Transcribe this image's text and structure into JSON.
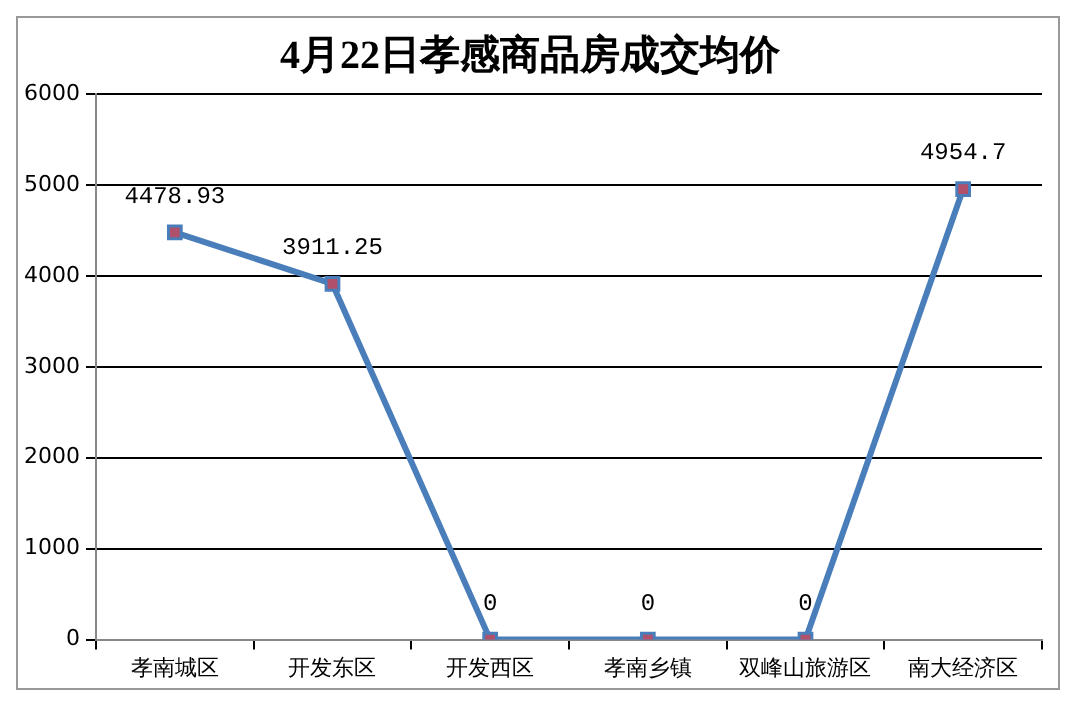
{
  "chart_data": {
    "type": "line",
    "title": "4月22日孝感商品房成交均价",
    "categories": [
      "孝南城区",
      "开发东区",
      "开发西区",
      "孝南乡镇",
      "双峰山旅游区",
      "南大经济区"
    ],
    "series": [
      {
        "color": "#4a7ebb",
        "values": [
          4478.93,
          3911.25,
          0,
          0,
          0,
          4954.7
        ]
      }
    ],
    "ylim": [
      0,
      6000
    ],
    "yticks": [
      0,
      1000,
      2000,
      3000,
      4000,
      5000,
      6000
    ],
    "grid": "y",
    "marker": "square",
    "data_labels": true
  }
}
